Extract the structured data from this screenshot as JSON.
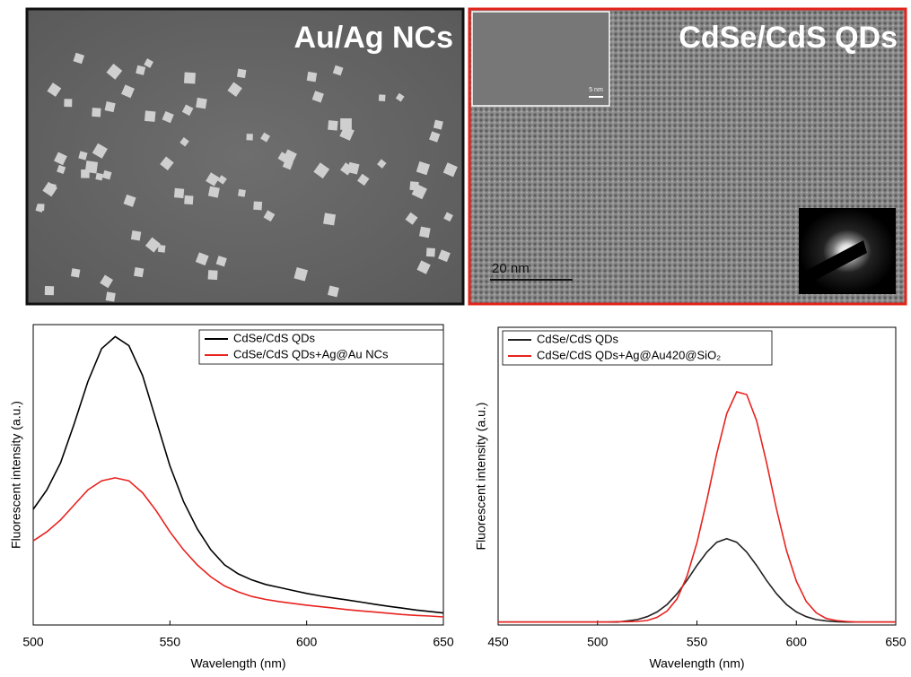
{
  "images": [
    {
      "label": "Au/Ag NCs"
    },
    {
      "label": "CdSe/CdS QDs",
      "scale_bar": "20 nm",
      "inset_scale_bar": "5 nm"
    }
  ],
  "chart_data": [
    {
      "type": "line",
      "xlabel": "Wavelength (nm)",
      "ylabel": "Fluorescent intensity (a.u.)",
      "x": [
        500,
        505,
        510,
        515,
        520,
        525,
        530,
        535,
        540,
        545,
        550,
        555,
        560,
        565,
        570,
        575,
        580,
        585,
        590,
        595,
        600,
        605,
        610,
        615,
        620,
        625,
        630,
        635,
        640,
        645,
        650
      ],
      "series": [
        {
          "name": "CdSe/CdS QDs",
          "color": "#000000",
          "values": [
            0.385,
            0.45,
            0.54,
            0.67,
            0.81,
            0.92,
            0.96,
            0.93,
            0.83,
            0.68,
            0.53,
            0.41,
            0.32,
            0.25,
            0.2,
            0.17,
            0.15,
            0.135,
            0.125,
            0.115,
            0.105,
            0.097,
            0.09,
            0.083,
            0.076,
            0.069,
            0.062,
            0.056,
            0.05,
            0.045,
            0.04
          ]
        },
        {
          "name": "CdSe/CdS QDs+Ag@Au NCs",
          "color": "#e8221e",
          "values": [
            0.28,
            0.31,
            0.35,
            0.4,
            0.45,
            0.48,
            0.49,
            0.48,
            0.44,
            0.38,
            0.31,
            0.25,
            0.2,
            0.16,
            0.13,
            0.11,
            0.095,
            0.085,
            0.078,
            0.072,
            0.066,
            0.061,
            0.056,
            0.051,
            0.047,
            0.043,
            0.039,
            0.035,
            0.032,
            0.03,
            0.027
          ]
        }
      ],
      "xlim": [
        500,
        650
      ],
      "xticks": [
        500,
        550,
        600,
        650
      ],
      "ylim": [
        0,
        1
      ]
    },
    {
      "type": "line",
      "xlabel": "Wavelength (nm)",
      "ylabel": "Fluorescent intensity (a.u.)",
      "x": [
        450,
        455,
        460,
        465,
        470,
        475,
        480,
        485,
        490,
        495,
        500,
        505,
        510,
        515,
        520,
        525,
        530,
        535,
        540,
        545,
        550,
        555,
        560,
        565,
        570,
        575,
        580,
        585,
        590,
        595,
        600,
        605,
        610,
        615,
        620,
        625,
        630,
        635,
        640,
        645,
        650
      ],
      "series": [
        {
          "name": "CdSe/CdS QDs",
          "color": "#222222",
          "values": [
            0.01,
            0.01,
            0.01,
            0.01,
            0.01,
            0.01,
            0.01,
            0.01,
            0.01,
            0.01,
            0.01,
            0.01,
            0.01,
            0.014,
            0.018,
            0.028,
            0.044,
            0.069,
            0.105,
            0.15,
            0.2,
            0.245,
            0.278,
            0.29,
            0.278,
            0.245,
            0.2,
            0.15,
            0.105,
            0.069,
            0.044,
            0.028,
            0.018,
            0.014,
            0.011,
            0.01,
            0.01,
            0.01,
            0.01,
            0.01,
            0.01
          ]
        },
        {
          "name": "CdSe/CdS QDs+Ag@Au420@SiO₂",
          "color": "#e8221e",
          "values": [
            0.01,
            0.01,
            0.01,
            0.01,
            0.01,
            0.01,
            0.01,
            0.01,
            0.01,
            0.01,
            0.01,
            0.01,
            0.011,
            0.011,
            0.012,
            0.015,
            0.026,
            0.047,
            0.088,
            0.164,
            0.276,
            0.42,
            0.576,
            0.71,
            0.783,
            0.774,
            0.686,
            0.546,
            0.39,
            0.251,
            0.147,
            0.079,
            0.041,
            0.022,
            0.015,
            0.012,
            0.01,
            0.01,
            0.01,
            0.01,
            0.01
          ]
        }
      ],
      "xlim": [
        450,
        650
      ],
      "xticks": [
        450,
        500,
        550,
        600,
        650
      ],
      "ylim": [
        0,
        1
      ]
    }
  ]
}
